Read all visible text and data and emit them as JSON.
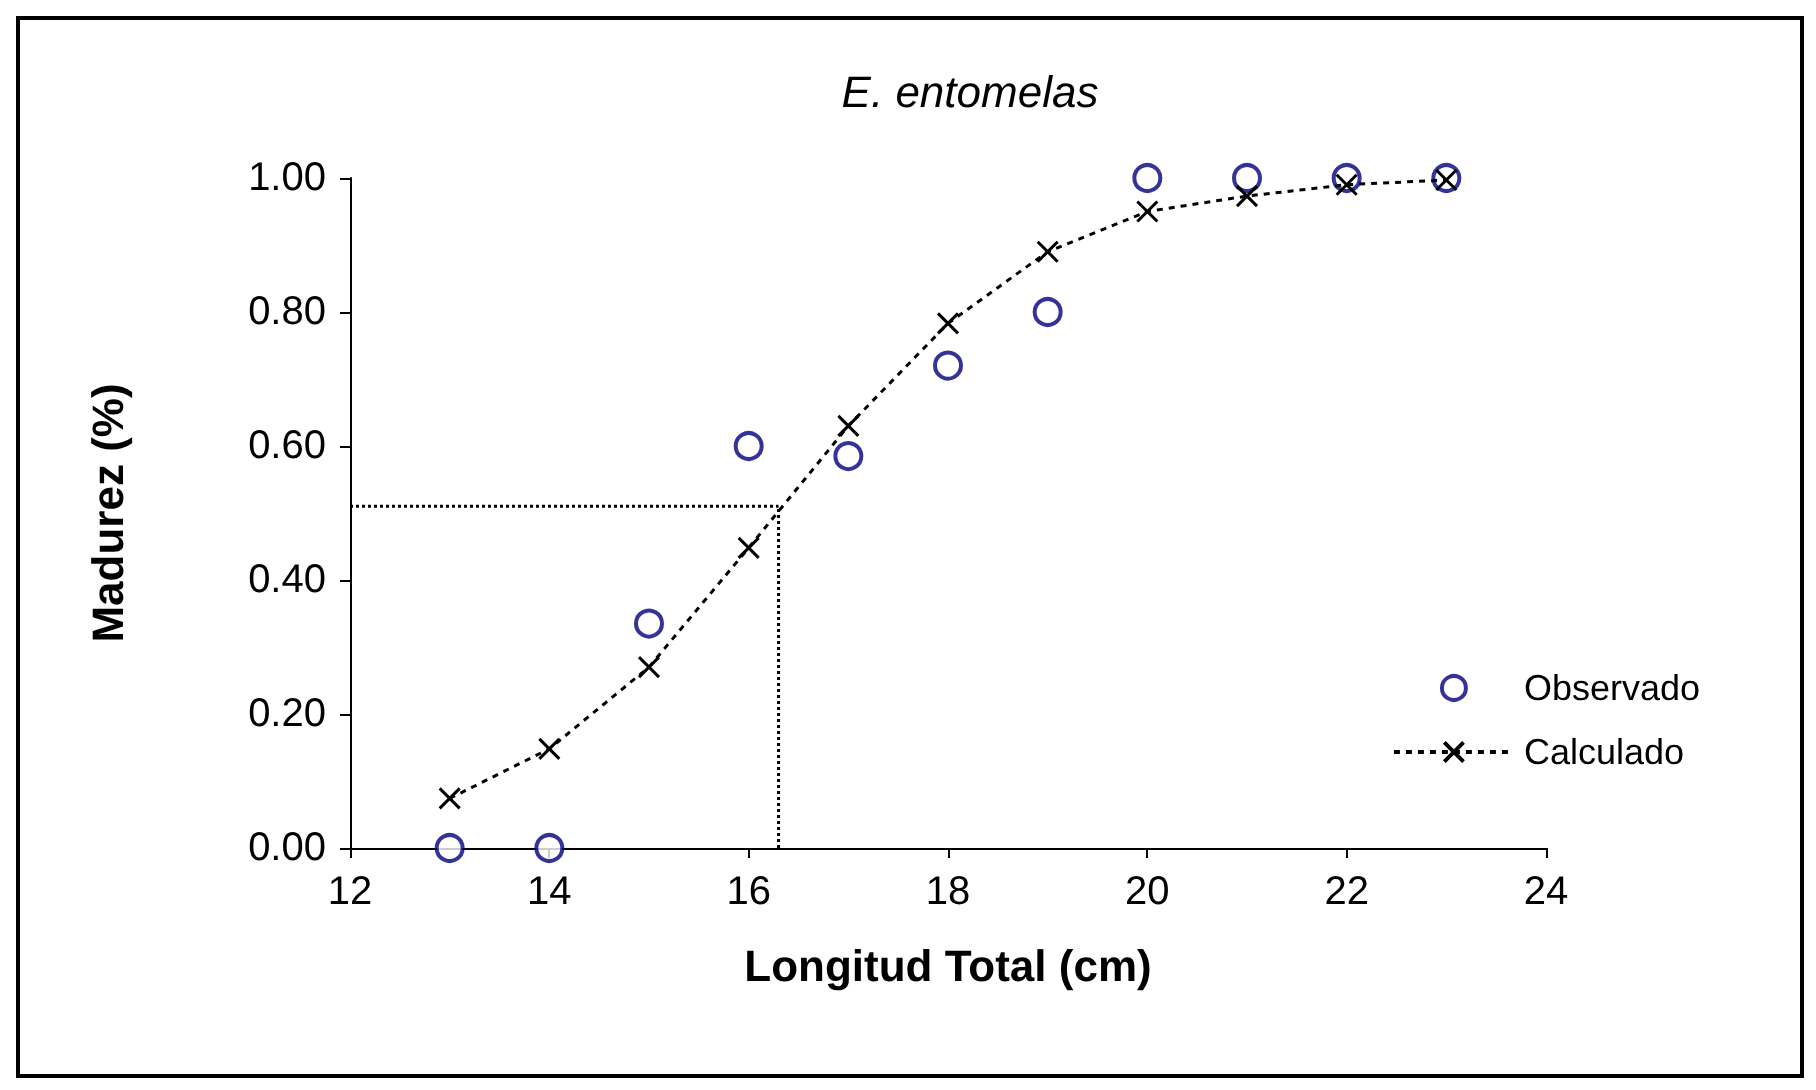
{
  "chart_data": {
    "type": "scatter",
    "title": "E. entomelas",
    "xlabel": "Longitud Total (cm)",
    "ylabel": "Madurez (%)",
    "x": [
      13,
      14,
      15,
      16,
      17,
      18,
      19,
      20,
      21,
      22,
      23
    ],
    "series": [
      {
        "name": "Observado",
        "color": "#000080",
        "marker": "circle",
        "values": [
          0.0,
          0.0,
          0.335,
          0.6,
          0.585,
          0.72,
          0.8,
          1.0,
          1.0,
          1.0,
          1.0
        ]
      },
      {
        "name": "Calculado",
        "type": "line",
        "color": "#000000",
        "marker": "cross",
        "line_style": "dashed",
        "values": [
          0.074,
          0.148,
          0.27,
          0.448,
          0.63,
          0.783,
          0.89,
          0.95,
          0.973,
          0.99,
          0.997
        ]
      }
    ],
    "ref_lines": [
      {
        "axis": "y",
        "value": 0.51,
        "line_style": "dotted",
        "color": "#000000"
      },
      {
        "axis": "x",
        "value": 16.3,
        "line_style": "dotted",
        "color": "#000000"
      }
    ],
    "xlim": [
      12,
      24
    ],
    "xticks": [
      12,
      14,
      16,
      18,
      20,
      22,
      24
    ],
    "ylim": [
      0,
      1
    ],
    "yticks": [
      {
        "value": 0,
        "label": "0.00"
      },
      {
        "value": 0.2,
        "label": "0.20"
      },
      {
        "value": 0.4,
        "label": "0.40"
      },
      {
        "value": 0.6,
        "label": "0.60"
      },
      {
        "value": 0.8,
        "label": "0.80"
      },
      {
        "value": 1,
        "label": "1.00"
      }
    ],
    "grid": false,
    "legend": "right"
  }
}
